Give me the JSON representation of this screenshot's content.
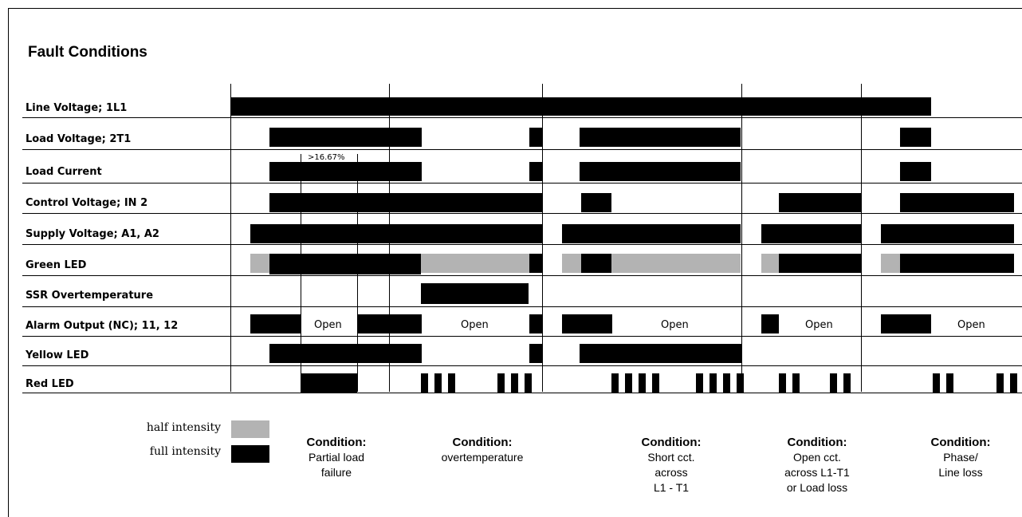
{
  "title": "Fault Conditions",
  "rows": [
    {
      "label": "Line Voltage; 1L1"
    },
    {
      "label": "Load Voltage; 2T1"
    },
    {
      "label": "Load Current"
    },
    {
      "label": "Control Voltage; IN 2"
    },
    {
      "label": "Supply Voltage; A1, A2"
    },
    {
      "label": "Green LED"
    },
    {
      "label": "SSR Overtemperature"
    },
    {
      "label": "Alarm Output (NC); 11, 12"
    },
    {
      "label": "Yellow LED"
    },
    {
      "label": "Red LED"
    }
  ],
  "open_labels": [
    "Open",
    "Open",
    "Open",
    "Open",
    "Open"
  ],
  "annotation": ">16.67%",
  "legend": {
    "half_label": "half intensity",
    "full_label": "full intensity",
    "half_color": "#b3b3b3",
    "full_color": "#000000"
  },
  "conditions": [
    {
      "heading": "Condition:",
      "lines": [
        "Partial load",
        "failure"
      ]
    },
    {
      "heading": "Condition:",
      "lines": [
        "overtemperature"
      ]
    },
    {
      "heading": "Condition:",
      "lines": [
        "Short cct.",
        "across",
        "L1 - T1"
      ]
    },
    {
      "heading": "Condition:",
      "lines": [
        "Open cct.",
        "across L1-T1",
        "or Load loss"
      ]
    },
    {
      "heading": "Condition:",
      "lines": [
        "Phase/",
        "Line loss"
      ]
    }
  ]
}
